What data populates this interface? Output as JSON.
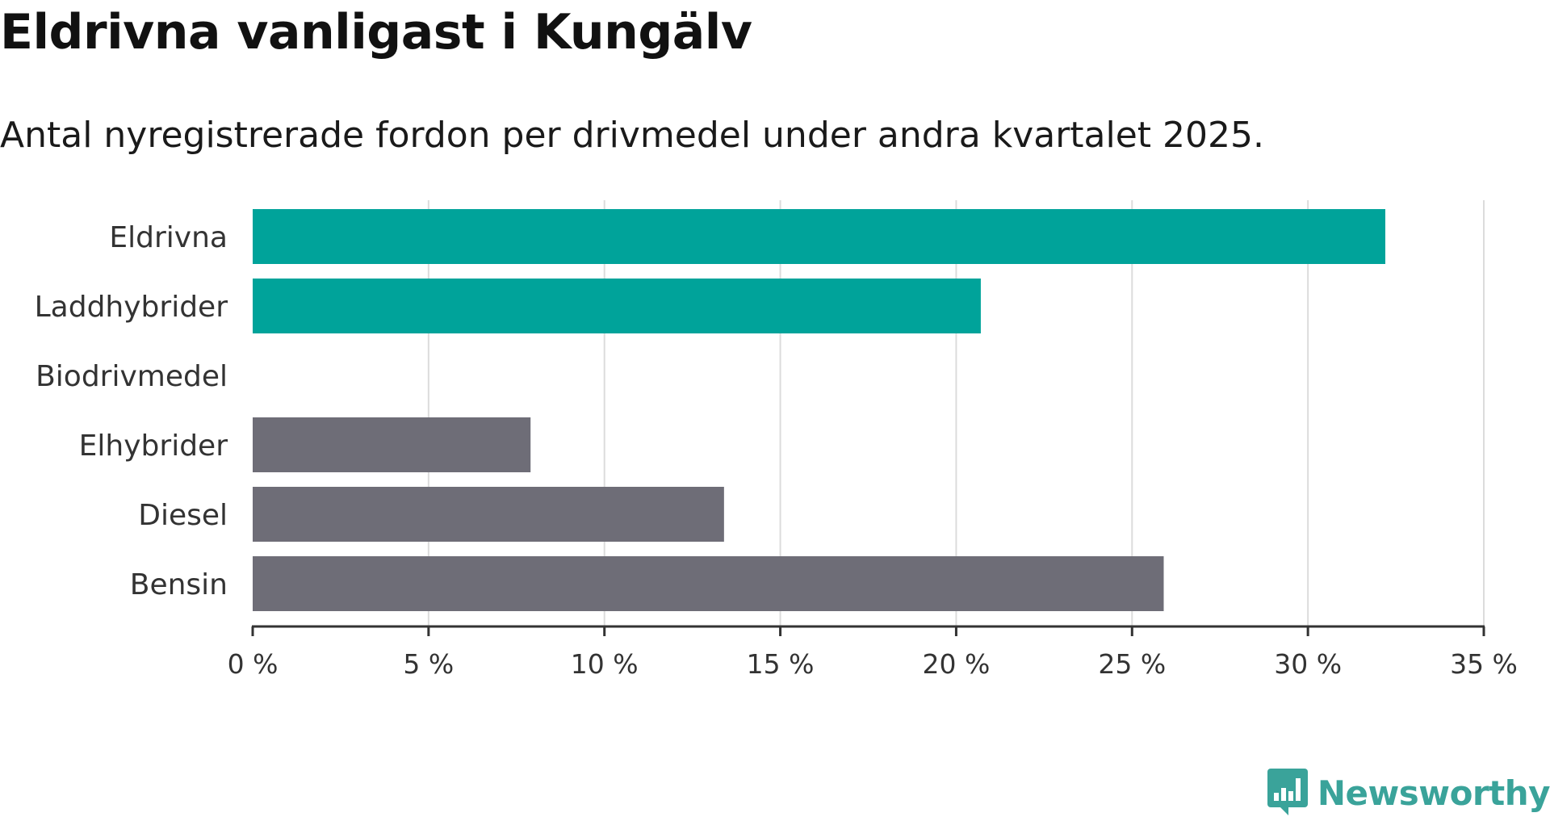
{
  "chart_data": {
    "type": "bar",
    "orientation": "horizontal",
    "title": "Eldrivna vanligast i Kungälv",
    "subtitle": "Antal nyregistrerade fordon per drivmedel under andra kvartalet 2025.",
    "categories": [
      "Eldrivna",
      "Laddhybrider",
      "Biodrivmedel",
      "Elhybrider",
      "Diesel",
      "Bensin"
    ],
    "values": [
      32.2,
      20.7,
      0,
      7.9,
      13.4,
      25.9
    ],
    "colors": [
      "#00a39a",
      "#00a39a",
      "#00a39a",
      "#6e6d77",
      "#6e6d77",
      "#6e6d77"
    ],
    "xlim": [
      0,
      35
    ],
    "xticks": [
      0,
      5,
      10,
      15,
      20,
      25,
      30,
      35
    ],
    "xtick_labels": [
      "0 %",
      "5 %",
      "10 %",
      "15 %",
      "20 %",
      "25 %",
      "30 %",
      "35 %"
    ],
    "xlabel": "",
    "ylabel": "",
    "grid": "vertical"
  },
  "brand": {
    "name": "Newsworthy",
    "icon": "newsworthy-logo-icon",
    "color": "#3aa39a"
  }
}
